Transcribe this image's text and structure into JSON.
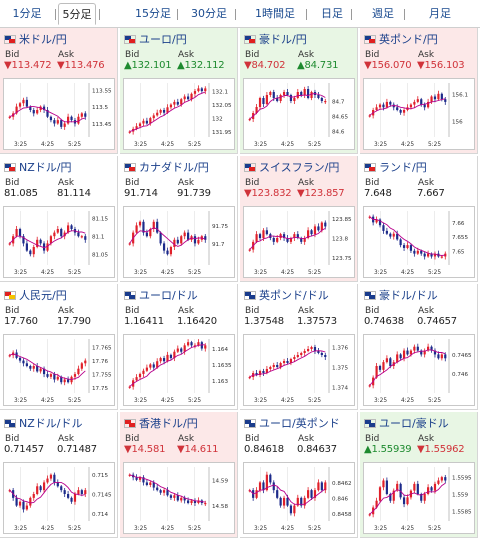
{
  "tabs": [
    {
      "label": "1分足",
      "active": false
    },
    {
      "label": "5分足",
      "active": true
    },
    {
      "label": "15分足",
      "active": false
    },
    {
      "label": "30分足",
      "active": false
    },
    {
      "label": "1時間足",
      "active": false
    },
    {
      "label": "日足",
      "active": false
    },
    {
      "label": "週足",
      "active": false
    },
    {
      "label": "月足",
      "active": false
    }
  ],
  "bid_label": "Bid",
  "ask_label": "Ask",
  "colors": {
    "up": "#1d8a2e",
    "down": "#d0333a",
    "bar_up": "#e0202a",
    "bar_down": "#1c2a8a",
    "ma": "#b8008c",
    "bg_down": "#fce8e8",
    "bg_up": "#e8f6e4"
  },
  "panels": [
    {
      "name": "米ドル/円",
      "dir": "down",
      "flag": [
        "#1a3c8c",
        "#e02020"
      ],
      "bid": "▼113.472",
      "ask": "▼113.476",
      "chart_data": {
        "type": "line",
        "x_ticks": [
          "3:25",
          "4:25",
          "5:25"
        ],
        "y_ticks": [
          "113.55",
          "113.5",
          "113.45"
        ],
        "ylim": [
          113.41,
          113.57
        ],
        "values": [
          113.47,
          113.48,
          113.5,
          113.51,
          113.52,
          113.5,
          113.49,
          113.48,
          113.49,
          113.5,
          113.49,
          113.47,
          113.46,
          113.45,
          113.46,
          113.44,
          113.45,
          113.47,
          113.46,
          113.45,
          113.47,
          113.48,
          113.47
        ]
      }
    },
    {
      "name": "ユーロ/円",
      "dir": "up",
      "flag": [
        "#1a3c8c",
        "#e02020"
      ],
      "bid": "▲132.101",
      "ask": "▲132.112",
      "chart_data": {
        "type": "line",
        "x_ticks": [
          "3:25",
          "4:25",
          "5:25"
        ],
        "y_ticks": [
          "132.1",
          "132.05",
          "132",
          "131.95"
        ],
        "ylim": [
          131.93,
          132.13
        ],
        "values": [
          131.95,
          131.96,
          131.97,
          131.98,
          131.99,
          131.98,
          132.0,
          132.01,
          132.02,
          132.03,
          132.02,
          132.04,
          132.05,
          132.06,
          132.05,
          132.07,
          132.08,
          132.07,
          132.09,
          132.1,
          132.11,
          132.1,
          132.11
        ]
      }
    },
    {
      "name": "豪ドル/円",
      "dir": "up",
      "flag": [
        "#1a3c8c",
        "#e02020"
      ],
      "bid": "▼84.702",
      "ask": "▲84.731",
      "chart_data": {
        "type": "line",
        "x_ticks": [
          "3:25",
          "4:25",
          "5:25"
        ],
        "y_ticks": [
          "84.7",
          "84.65",
          "84.6"
        ],
        "ylim": [
          84.58,
          84.76
        ],
        "values": [
          84.64,
          84.66,
          84.68,
          84.71,
          84.69,
          84.72,
          84.73,
          84.71,
          84.7,
          84.72,
          84.73,
          84.72,
          84.7,
          84.71,
          84.73,
          84.72,
          84.74,
          84.71,
          84.73,
          84.72,
          84.71,
          84.7,
          84.7
        ]
      }
    },
    {
      "name": "英ポンド/円",
      "dir": "down",
      "flag": [
        "#1a3c8c",
        "#e02020"
      ],
      "bid": "▼156.070",
      "ask": "▼156.103",
      "chart_data": {
        "type": "line",
        "x_ticks": [
          "3:25",
          "4:25",
          "5:25"
        ],
        "y_ticks": [
          "156.1",
          "156"
        ],
        "ylim": [
          155.94,
          156.14
        ],
        "values": [
          156.02,
          156.04,
          156.05,
          156.06,
          156.05,
          156.07,
          156.06,
          156.05,
          156.04,
          156.03,
          156.04,
          156.05,
          156.06,
          156.07,
          156.08,
          156.06,
          156.05,
          156.07,
          156.09,
          156.08,
          156.1,
          156.08,
          156.07
        ]
      }
    },
    {
      "name": "NZドル/円",
      "dir": "flat",
      "flag": [
        "#1a3c8c",
        "#e02020"
      ],
      "bid": "81.085",
      "ask": "81.114",
      "chart_data": {
        "type": "line",
        "x_ticks": [
          "3:25",
          "4:25",
          "5:25"
        ],
        "y_ticks": [
          "81.15",
          "81.1",
          "81.05"
        ],
        "ylim": [
          81.02,
          81.17
        ],
        "values": [
          81.08,
          81.1,
          81.12,
          81.1,
          81.08,
          81.06,
          81.05,
          81.07,
          81.09,
          81.08,
          81.06,
          81.08,
          81.1,
          81.11,
          81.12,
          81.1,
          81.11,
          81.13,
          81.12,
          81.11,
          81.1,
          81.1,
          81.09
        ]
      }
    },
    {
      "name": "カナダドル/円",
      "dir": "flat",
      "flag": [
        "#1a3c8c",
        "#e02020"
      ],
      "bid": "91.714",
      "ask": "91.739",
      "chart_data": {
        "type": "line",
        "x_ticks": [
          "3:25",
          "4:25",
          "5:25"
        ],
        "y_ticks": [
          "91.75",
          "91.7"
        ],
        "ylim": [
          91.64,
          91.79
        ],
        "values": [
          91.7,
          91.73,
          91.75,
          91.76,
          91.73,
          91.72,
          91.74,
          91.76,
          91.73,
          91.7,
          91.68,
          91.67,
          91.69,
          91.71,
          91.7,
          91.72,
          91.73,
          91.71,
          91.72,
          91.7,
          91.71,
          91.72,
          91.71
        ]
      }
    },
    {
      "name": "スイスフラン/円",
      "dir": "down",
      "flag": [
        "#1a3c8c",
        "#e02020"
      ],
      "bid": "▼123.832",
      "ask": "▼123.857",
      "chart_data": {
        "type": "line",
        "x_ticks": [
          "3:25",
          "4:25",
          "5:25"
        ],
        "y_ticks": [
          "123.85",
          "123.8",
          "123.75"
        ],
        "ylim": [
          123.73,
          123.87
        ],
        "values": [
          123.77,
          123.79,
          123.81,
          123.8,
          123.82,
          123.81,
          123.8,
          123.79,
          123.8,
          123.81,
          123.8,
          123.79,
          123.8,
          123.81,
          123.8,
          123.79,
          123.8,
          123.82,
          123.81,
          123.83,
          123.82,
          123.84,
          123.83
        ]
      }
    },
    {
      "name": "ランド/円",
      "dir": "flat",
      "flag": [
        "#1a3c8c",
        "#e02020"
      ],
      "bid": "7.648",
      "ask": "7.667",
      "chart_data": {
        "type": "line",
        "x_ticks": [
          "3:25",
          "4:25",
          "5:25"
        ],
        "y_ticks": [
          "7.66",
          "7.655",
          "7.65"
        ],
        "ylim": [
          7.645,
          7.664
        ],
        "values": [
          7.662,
          7.66,
          7.661,
          7.659,
          7.657,
          7.656,
          7.655,
          7.656,
          7.654,
          7.652,
          7.651,
          7.652,
          7.65,
          7.649,
          7.65,
          7.649,
          7.648,
          7.649,
          7.648,
          7.649,
          7.648,
          7.648,
          7.649
        ]
      }
    },
    {
      "name": "人民元/円",
      "dir": "flat",
      "flag": [
        "#e02020",
        "#f4c400"
      ],
      "bid": "17.760",
      "ask": "17.790",
      "chart_data": {
        "type": "line",
        "x_ticks": [
          "3:25",
          "4:25",
          "5:25"
        ],
        "y_ticks": [
          "17.765",
          "17.76",
          "17.755",
          "17.75"
        ],
        "ylim": [
          17.748,
          17.768
        ],
        "values": [
          17.762,
          17.763,
          17.761,
          17.76,
          17.759,
          17.758,
          17.757,
          17.758,
          17.756,
          17.757,
          17.755,
          17.754,
          17.755,
          17.753,
          17.754,
          17.752,
          17.753,
          17.752,
          17.754,
          17.755,
          17.757,
          17.759,
          17.76
        ]
      }
    },
    {
      "name": "ユーロ/ドル",
      "dir": "flat",
      "flag": [
        "#1a3c8c",
        "#1a3c8c"
      ],
      "bid": "1.16411",
      "ask": "1.16420",
      "chart_data": {
        "type": "line",
        "x_ticks": [
          "3:25",
          "4:25",
          "5:25"
        ],
        "y_ticks": [
          "1.164",
          "1.1635",
          "1.163"
        ],
        "ylim": [
          1.1626,
          1.1643
        ],
        "values": [
          1.1628,
          1.163,
          1.1631,
          1.1632,
          1.1633,
          1.1634,
          1.1635,
          1.1634,
          1.1636,
          1.1637,
          1.1636,
          1.1638,
          1.1637,
          1.1639,
          1.164,
          1.1639,
          1.1641,
          1.1642,
          1.1641,
          1.1641,
          1.1642,
          1.164,
          1.1641
        ]
      }
    },
    {
      "name": "英ポンド/ドル",
      "dir": "flat",
      "flag": [
        "#1a3c8c",
        "#1a3c8c"
      ],
      "bid": "1.37548",
      "ask": "1.37573",
      "chart_data": {
        "type": "line",
        "x_ticks": [
          "3:25",
          "4:25",
          "5:25"
        ],
        "y_ticks": [
          "1.376",
          "1.375",
          "1.374"
        ],
        "ylim": [
          1.3737,
          1.3764
        ],
        "values": [
          1.3745,
          1.3747,
          1.3746,
          1.3748,
          1.3747,
          1.3749,
          1.375,
          1.3751,
          1.375,
          1.3752,
          1.3753,
          1.3752,
          1.3754,
          1.3755,
          1.3756,
          1.3757,
          1.3758,
          1.3759,
          1.376,
          1.3758,
          1.3757,
          1.3756,
          1.3755
        ]
      }
    },
    {
      "name": "豪ドル/ドル",
      "dir": "flat",
      "flag": [
        "#1a3c8c",
        "#1a3c8c"
      ],
      "bid": "0.74638",
      "ask": "0.74657",
      "chart_data": {
        "type": "line",
        "x_ticks": [
          "3:25",
          "4:25",
          "5:25"
        ],
        "y_ticks": [
          "0.7465",
          "0.746"
        ],
        "ylim": [
          0.7455,
          0.7469
        ],
        "values": [
          0.7457,
          0.7459,
          0.7462,
          0.7461,
          0.7463,
          0.7464,
          0.7462,
          0.7463,
          0.7465,
          0.7464,
          0.7466,
          0.7465,
          0.7466,
          0.7467,
          0.7466,
          0.7465,
          0.7466,
          0.7467,
          0.7466,
          0.7465,
          0.7464,
          0.7465,
          0.7464
        ]
      }
    },
    {
      "name": "NZドル/ドル",
      "dir": "flat",
      "flag": [
        "#1a3c8c",
        "#1a3c8c"
      ],
      "bid": "0.71457",
      "ask": "0.71487",
      "chart_data": {
        "type": "line",
        "x_ticks": [
          "3:25",
          "4:25",
          "5:25"
        ],
        "y_ticks": [
          "0.715",
          "0.7145",
          "0.714"
        ],
        "ylim": [
          0.7138,
          0.7152
        ],
        "values": [
          0.7146,
          0.7144,
          0.7142,
          0.7143,
          0.7141,
          0.7142,
          0.7144,
          0.7145,
          0.7147,
          0.7146,
          0.7148,
          0.7149,
          0.715,
          0.7148,
          0.7147,
          0.7146,
          0.7145,
          0.7144,
          0.7143,
          0.7145,
          0.7146,
          0.7145,
          0.7146
        ]
      }
    },
    {
      "name": "香港ドル/円",
      "dir": "down",
      "flag": [
        "#e02020",
        "#e02020"
      ],
      "bid": "▼14.581",
      "ask": "▼14.611",
      "chart_data": {
        "type": "line",
        "x_ticks": [
          "3:25",
          "4:25",
          "5:25"
        ],
        "y_ticks": [
          "14.59",
          "14.58"
        ],
        "ylim": [
          14.574,
          14.595
        ],
        "values": [
          14.592,
          14.591,
          14.59,
          14.591,
          14.589,
          14.588,
          14.589,
          14.587,
          14.586,
          14.585,
          14.586,
          14.584,
          14.583,
          14.584,
          14.582,
          14.583,
          14.582,
          14.581,
          14.582,
          14.581,
          14.582,
          14.581,
          14.581
        ]
      }
    },
    {
      "name": "ユーロ/英ポンド",
      "dir": "flat",
      "flag": [
        "#1a3c8c",
        "#1a3c8c"
      ],
      "bid": "0.84618",
      "ask": "0.84637",
      "chart_data": {
        "type": "line",
        "x_ticks": [
          "3:25",
          "4:25",
          "5:25"
        ],
        "y_ticks": [
          "0.8462",
          "0.846",
          "0.8458"
        ],
        "ylim": [
          0.8457,
          0.8464
        ],
        "values": [
          0.8461,
          0.846,
          0.8461,
          0.8462,
          0.8461,
          0.8463,
          0.8462,
          0.8461,
          0.846,
          0.8459,
          0.846,
          0.8459,
          0.8458,
          0.8459,
          0.846,
          0.8459,
          0.846,
          0.8461,
          0.846,
          0.8461,
          0.8462,
          0.8461,
          0.8462
        ]
      }
    },
    {
      "name": "ユーロ/豪ドル",
      "dir": "up",
      "flag": [
        "#1a3c8c",
        "#1a3c8c"
      ],
      "bid": "▲1.55939",
      "ask": "▼1.55962",
      "chart_data": {
        "type": "line",
        "x_ticks": [
          "3:25",
          "4:25",
          "5:25"
        ],
        "y_ticks": [
          "1.5595",
          "1.559",
          "1.5585"
        ],
        "ylim": [
          1.5582,
          1.5598
        ],
        "values": [
          1.5584,
          1.5586,
          1.5588,
          1.5592,
          1.5594,
          1.559,
          1.5588,
          1.5591,
          1.5593,
          1.5589,
          1.5587,
          1.5589,
          1.5591,
          1.5593,
          1.559,
          1.5588,
          1.559,
          1.5592,
          1.5591,
          1.5593,
          1.5594,
          1.5595,
          1.5594
        ]
      }
    }
  ]
}
